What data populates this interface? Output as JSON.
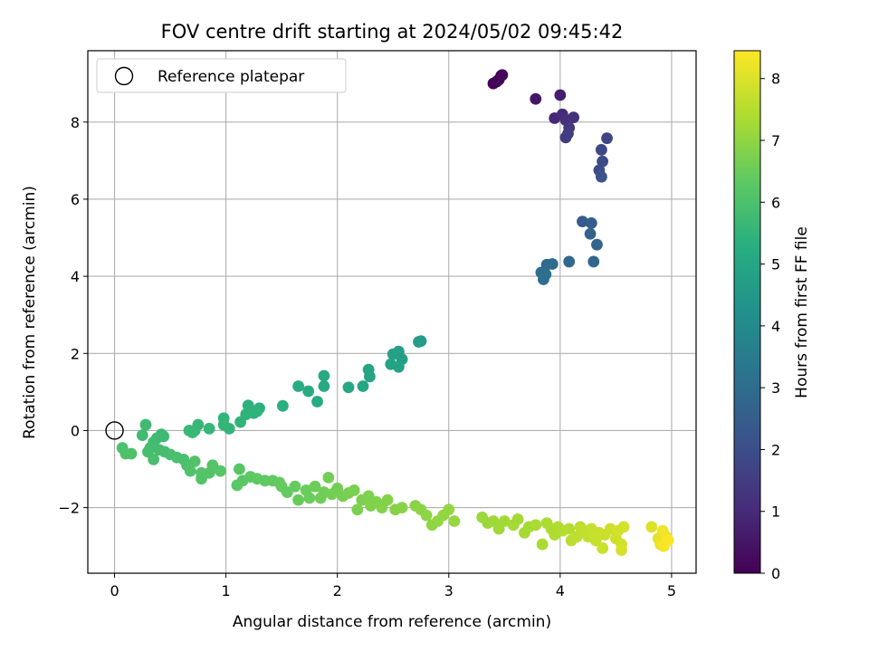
{
  "chart_data": {
    "type": "scatter",
    "title": "FOV centre drift starting at 2024/05/02 09:45:42",
    "xlabel": "Angular distance from reference (arcmin)",
    "ylabel": "Rotation from reference (arcmin)",
    "xlim": [
      -0.24,
      5.22
    ],
    "ylim": [
      -3.7,
      9.85
    ],
    "xticks": [
      0,
      1,
      2,
      3,
      4,
      5
    ],
    "yticks": [
      -2,
      0,
      2,
      4,
      6,
      8
    ],
    "grid": true,
    "colormap": "viridis",
    "colorbar": {
      "label": "Hours from first FF file",
      "range": [
        0,
        8.45
      ],
      "ticks": [
        0,
        1,
        2,
        3,
        4,
        5,
        6,
        7,
        8
      ]
    },
    "legend": {
      "placement": "top-left",
      "entries": [
        "Reference platepar"
      ]
    },
    "reference_point": {
      "x": 0,
      "y": 0
    },
    "series": [
      {
        "columns": [
          "x",
          "y",
          "hours"
        ],
        "points": [
          [
            3.4,
            9.0,
            0.05
          ],
          [
            3.43,
            9.05,
            0.1
          ],
          [
            3.45,
            9.1,
            0.12
          ],
          [
            3.47,
            9.2,
            0.15
          ],
          [
            3.48,
            9.22,
            0.18
          ],
          [
            3.78,
            8.6,
            0.5
          ],
          [
            4.0,
            8.7,
            0.7
          ],
          [
            3.95,
            8.1,
            0.9
          ],
          [
            4.02,
            8.2,
            1.0
          ],
          [
            4.05,
            8.05,
            1.1
          ],
          [
            4.12,
            8.12,
            1.2
          ],
          [
            4.08,
            7.85,
            1.3
          ],
          [
            4.05,
            7.6,
            1.4
          ],
          [
            4.07,
            7.7,
            1.5
          ],
          [
            4.42,
            7.58,
            1.7
          ],
          [
            4.37,
            7.28,
            1.8
          ],
          [
            4.38,
            6.98,
            1.9
          ],
          [
            4.35,
            6.75,
            2.0
          ],
          [
            4.37,
            6.58,
            2.1
          ],
          [
            4.2,
            5.42,
            2.4
          ],
          [
            4.28,
            5.38,
            2.5
          ],
          [
            4.27,
            5.1,
            2.6
          ],
          [
            4.33,
            4.82,
            2.7
          ],
          [
            4.3,
            4.38,
            2.8
          ],
          [
            4.08,
            4.38,
            2.85
          ],
          [
            3.88,
            4.3,
            2.9
          ],
          [
            3.93,
            4.32,
            2.95
          ],
          [
            3.83,
            4.1,
            3.0
          ],
          [
            3.85,
            3.92,
            3.05
          ],
          [
            3.87,
            4.05,
            3.1
          ],
          [
            2.75,
            2.32,
            4.6
          ],
          [
            2.73,
            2.3,
            4.62
          ],
          [
            2.58,
            1.85,
            4.7
          ],
          [
            2.55,
            2.05,
            4.75
          ],
          [
            2.5,
            1.98,
            4.8
          ],
          [
            2.55,
            1.65,
            4.85
          ],
          [
            2.48,
            1.72,
            4.88
          ],
          [
            2.28,
            1.58,
            4.92
          ],
          [
            2.29,
            1.4,
            4.95
          ],
          [
            2.23,
            1.15,
            5.0
          ],
          [
            2.1,
            1.12,
            5.05
          ],
          [
            1.88,
            1.42,
            5.1
          ],
          [
            1.88,
            1.15,
            5.12
          ],
          [
            1.82,
            0.75,
            5.18
          ],
          [
            1.74,
            1.02,
            5.2
          ],
          [
            1.65,
            1.15,
            5.22
          ],
          [
            1.51,
            0.64,
            5.3
          ],
          [
            1.3,
            0.58,
            5.35
          ],
          [
            1.2,
            0.65,
            5.37
          ],
          [
            1.25,
            0.45,
            5.4
          ],
          [
            1.28,
            0.5,
            5.42
          ],
          [
            1.18,
            0.42,
            5.44
          ],
          [
            1.13,
            0.22,
            5.46
          ],
          [
            0.98,
            0.32,
            5.5
          ],
          [
            1.03,
            0.05,
            5.52
          ],
          [
            0.98,
            0.15,
            5.54
          ],
          [
            0.85,
            0.05,
            5.58
          ],
          [
            0.75,
            0.15,
            5.6
          ],
          [
            0.7,
            -0.05,
            5.62
          ],
          [
            0.72,
            0.0,
            5.64
          ],
          [
            0.67,
            0.0,
            5.66
          ],
          [
            0.44,
            -0.15,
            5.7
          ],
          [
            0.42,
            -0.1,
            5.72
          ],
          [
            0.38,
            -0.2,
            5.74
          ],
          [
            0.28,
            0.15,
            5.76
          ],
          [
            0.25,
            -0.12,
            5.78
          ],
          [
            0.35,
            -0.3,
            5.8
          ],
          [
            0.32,
            -0.45,
            5.82
          ],
          [
            0.4,
            -0.5,
            5.84
          ],
          [
            0.45,
            -0.55,
            5.86
          ],
          [
            0.3,
            -0.55,
            5.88
          ],
          [
            0.35,
            -0.75,
            5.9
          ],
          [
            0.5,
            -0.62,
            5.92
          ],
          [
            0.56,
            -0.7,
            5.94
          ],
          [
            0.62,
            -0.75,
            5.96
          ],
          [
            0.65,
            -0.9,
            5.98
          ],
          [
            0.07,
            -0.45,
            6.0
          ],
          [
            0.1,
            -0.6,
            6.02
          ],
          [
            0.15,
            -0.6,
            6.04
          ],
          [
            0.68,
            -1.05,
            6.06
          ],
          [
            0.72,
            -0.8,
            6.08
          ],
          [
            0.78,
            -1.1,
            6.1
          ],
          [
            0.78,
            -1.25,
            6.12
          ],
          [
            0.88,
            -0.9,
            6.14
          ],
          [
            0.85,
            -1.1,
            6.16
          ],
          [
            0.95,
            -1.05,
            6.18
          ],
          [
            1.12,
            -1.0,
            6.22
          ],
          [
            1.1,
            -1.42,
            6.24
          ],
          [
            1.15,
            -1.3,
            6.26
          ],
          [
            1.22,
            -1.2,
            6.3
          ],
          [
            1.28,
            -1.25,
            6.32
          ],
          [
            1.35,
            -1.3,
            6.34
          ],
          [
            1.42,
            -1.3,
            6.36
          ],
          [
            1.48,
            -1.35,
            6.38
          ],
          [
            1.55,
            -1.6,
            6.4
          ],
          [
            1.5,
            -1.45,
            6.42
          ],
          [
            1.62,
            -1.45,
            6.44
          ],
          [
            1.65,
            -1.8,
            6.46
          ],
          [
            1.72,
            -1.55,
            6.48
          ],
          [
            1.75,
            -1.75,
            6.5
          ],
          [
            1.8,
            -1.45,
            6.52
          ],
          [
            1.85,
            -1.75,
            6.55
          ],
          [
            1.88,
            -1.6,
            6.58
          ],
          [
            1.92,
            -1.22,
            6.6
          ],
          [
            1.95,
            -1.65,
            6.62
          ],
          [
            2.0,
            -1.5,
            6.64
          ],
          [
            2.05,
            -1.7,
            6.66
          ],
          [
            2.1,
            -1.62,
            6.68
          ],
          [
            2.15,
            -1.55,
            6.7
          ],
          [
            2.18,
            -2.05,
            6.72
          ],
          [
            2.22,
            -1.8,
            6.74
          ],
          [
            2.28,
            -1.7,
            6.76
          ],
          [
            2.3,
            -1.95,
            6.78
          ],
          [
            2.35,
            -1.85,
            6.8
          ],
          [
            2.4,
            -2.0,
            6.82
          ],
          [
            2.45,
            -1.8,
            6.84
          ],
          [
            2.52,
            -2.05,
            6.86
          ],
          [
            2.58,
            -2.0,
            6.88
          ],
          [
            2.7,
            -1.95,
            6.92
          ],
          [
            2.75,
            -2.05,
            6.95
          ],
          [
            2.8,
            -2.2,
            6.98
          ],
          [
            2.85,
            -2.45,
            7.0
          ],
          [
            2.9,
            -2.35,
            7.02
          ],
          [
            2.95,
            -2.2,
            7.04
          ],
          [
            3.0,
            -2.05,
            7.06
          ],
          [
            3.05,
            -2.35,
            7.08
          ],
          [
            3.3,
            -2.25,
            7.15
          ],
          [
            3.35,
            -2.4,
            7.18
          ],
          [
            3.4,
            -2.35,
            7.2
          ],
          [
            3.45,
            -2.55,
            7.22
          ],
          [
            3.5,
            -2.35,
            7.24
          ],
          [
            3.58,
            -2.45,
            7.26
          ],
          [
            3.62,
            -2.3,
            7.28
          ],
          [
            3.68,
            -2.65,
            7.3
          ],
          [
            3.72,
            -2.5,
            7.32
          ],
          [
            3.78,
            -2.45,
            7.34
          ],
          [
            3.84,
            -2.95,
            7.36
          ],
          [
            3.88,
            -2.4,
            7.38
          ],
          [
            3.92,
            -2.55,
            7.4
          ],
          [
            3.95,
            -2.7,
            7.42
          ],
          [
            3.98,
            -2.5,
            7.44
          ],
          [
            4.02,
            -2.6,
            7.46
          ],
          [
            4.08,
            -2.55,
            7.5
          ],
          [
            4.1,
            -2.85,
            7.55
          ],
          [
            4.15,
            -2.75,
            7.6
          ],
          [
            4.18,
            -2.5,
            7.62
          ],
          [
            4.22,
            -2.6,
            7.65
          ],
          [
            4.25,
            -2.75,
            7.68
          ],
          [
            4.28,
            -2.55,
            7.7
          ],
          [
            4.32,
            -2.85,
            7.72
          ],
          [
            4.35,
            -2.65,
            7.74
          ],
          [
            4.38,
            -3.05,
            7.76
          ],
          [
            4.4,
            -2.7,
            7.78
          ],
          [
            4.45,
            -2.55,
            7.8
          ],
          [
            4.5,
            -2.8,
            7.82
          ],
          [
            4.55,
            -2.95,
            7.85
          ],
          [
            4.52,
            -2.6,
            7.88
          ],
          [
            4.57,
            -2.5,
            7.9
          ],
          [
            4.55,
            -3.1,
            7.92
          ],
          [
            4.82,
            -2.5,
            8.0
          ],
          [
            4.88,
            -2.8,
            8.1
          ],
          [
            4.9,
            -2.95,
            8.2
          ],
          [
            4.92,
            -2.6,
            8.25
          ],
          [
            4.95,
            -2.75,
            8.3
          ],
          [
            4.93,
            -3.0,
            8.35
          ],
          [
            4.97,
            -2.85,
            8.4
          ]
        ]
      }
    ]
  }
}
